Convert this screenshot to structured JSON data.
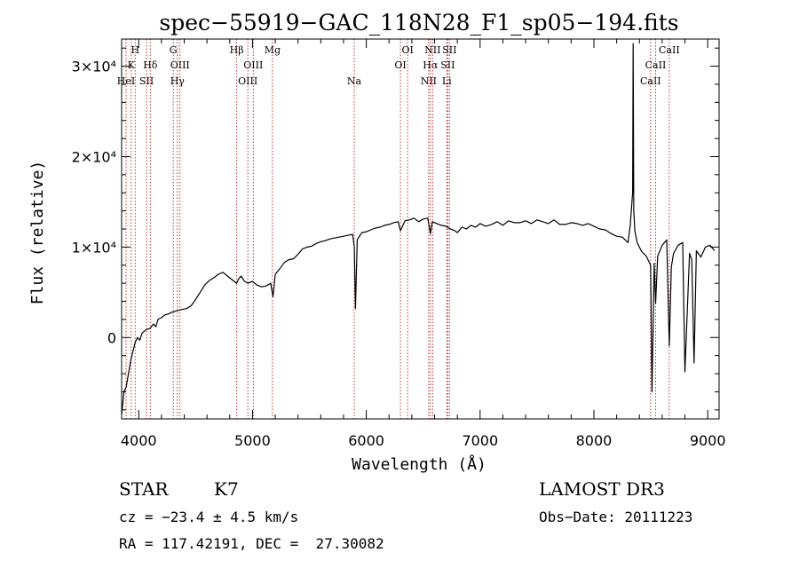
{
  "chart_data": {
    "type": "line",
    "title": "spec−55919−GAC_118N28_F1_sp05−194.fits",
    "xlabel": "Wavelength (Å)",
    "ylabel": "Flux (relative)",
    "xlim": [
      3850,
      9100
    ],
    "ylim": [
      -9000,
      33000
    ],
    "x_ticks": [
      {
        "value": 4000,
        "label": "4000"
      },
      {
        "value": 5000,
        "label": "5000"
      },
      {
        "value": 6000,
        "label": "6000"
      },
      {
        "value": 7000,
        "label": "7000"
      },
      {
        "value": 8000,
        "label": "8000"
      },
      {
        "value": 9000,
        "label": "9000"
      }
    ],
    "y_ticks": [
      {
        "value": 0,
        "label": "0"
      },
      {
        "value": 10000,
        "label": "1×10⁴"
      },
      {
        "value": 20000,
        "label": "2×10⁴"
      },
      {
        "value": 30000,
        "label": "3×10⁴"
      }
    ],
    "series": [
      {
        "name": "flux",
        "x": [
          3850,
          3870,
          3890,
          3910,
          3930,
          3950,
          3970,
          3990,
          4010,
          4030,
          4050,
          4070,
          4100,
          4130,
          4150,
          4170,
          4200,
          4230,
          4260,
          4290,
          4320,
          4350,
          4380,
          4420,
          4460,
          4500,
          4540,
          4580,
          4620,
          4660,
          4700,
          4740,
          4780,
          4820,
          4860,
          4880,
          4900,
          4930,
          4960,
          5000,
          5040,
          5080,
          5120,
          5160,
          5180,
          5200,
          5240,
          5280,
          5320,
          5360,
          5400,
          5440,
          5480,
          5520,
          5560,
          5600,
          5640,
          5680,
          5720,
          5760,
          5800,
          5840,
          5880,
          5895,
          5905,
          5920,
          5960,
          6000,
          6040,
          6080,
          6120,
          6160,
          6200,
          6240,
          6280,
          6300,
          6340,
          6380,
          6420,
          6460,
          6500,
          6540,
          6563,
          6580,
          6620,
          6660,
          6700,
          6740,
          6780,
          6800,
          6840,
          6880,
          6920,
          6960,
          7000,
          7050,
          7100,
          7150,
          7200,
          7250,
          7300,
          7350,
          7400,
          7450,
          7500,
          7550,
          7600,
          7650,
          7700,
          7750,
          7800,
          7850,
          7900,
          7950,
          8000,
          8050,
          8100,
          8150,
          8200,
          8250,
          8300,
          8320,
          8340,
          8345,
          8350,
          8360,
          8380,
          8420,
          8460,
          8498,
          8510,
          8530,
          8542,
          8560,
          8600,
          8640,
          8662,
          8680,
          8700,
          8740,
          8780,
          8800,
          8840,
          8860,
          8880,
          8900,
          8940,
          8980,
          9020,
          9060
        ],
        "y": [
          -8500,
          -6000,
          -5500,
          -4000,
          -2500,
          -1500,
          -500,
          0,
          -300,
          500,
          700,
          900,
          1000,
          1500,
          1200,
          2000,
          2200,
          2500,
          2600,
          2800,
          2900,
          3000,
          3100,
          3200,
          3500,
          4200,
          5000,
          5800,
          6300,
          6600,
          7000,
          7200,
          6800,
          6400,
          6000,
          6500,
          6800,
          6200,
          6000,
          6200,
          5800,
          5600,
          5700,
          6000,
          4500,
          7000,
          7600,
          8300,
          8600,
          8700,
          9200,
          9800,
          10000,
          10100,
          10400,
          10600,
          10700,
          10900,
          11000,
          11100,
          11200,
          11300,
          11400,
          10000,
          3200,
          10800,
          11600,
          11700,
          11900,
          12100,
          12200,
          12400,
          12500,
          12700,
          12800,
          11800,
          12900,
          13000,
          13200,
          12800,
          13100,
          13200,
          11500,
          12800,
          12600,
          12400,
          12300,
          12000,
          11800,
          11600,
          12200,
          12000,
          12400,
          12200,
          12600,
          12300,
          12500,
          12800,
          12400,
          12900,
          12700,
          12700,
          12900,
          12600,
          13000,
          12800,
          12600,
          13000,
          12500,
          12500,
          12700,
          12600,
          12400,
          12600,
          12300,
          12000,
          11900,
          11500,
          11200,
          11100,
          10500,
          12500,
          16000,
          32500,
          14000,
          11800,
          10500,
          9500,
          9000,
          8000,
          -6000,
          8200,
          3800,
          9000,
          10200,
          10800,
          -900,
          7800,
          9300,
          10200,
          10500,
          -3800,
          9300,
          8600,
          -2800,
          9600,
          8900,
          10000,
          10200,
          9600
        ]
      }
    ],
    "line_markers": [
      {
        "name": "HeI",
        "wavelength": 3889,
        "row": 2
      },
      {
        "name": "K",
        "wavelength": 3934,
        "row": 1
      },
      {
        "name": "H",
        "wavelength": 3969,
        "row": 0
      },
      {
        "name": "SII",
        "wavelength": 4069,
        "row": 2
      },
      {
        "name": "Hδ",
        "wavelength": 4102,
        "row": 1
      },
      {
        "name": "G",
        "wavelength": 4304,
        "row": 0
      },
      {
        "name": "Hγ",
        "wavelength": 4340,
        "row": 2
      },
      {
        "name": "OIII",
        "wavelength": 4363,
        "row": 1
      },
      {
        "name": "Hβ",
        "wavelength": 4861,
        "row": 0
      },
      {
        "name": "OIII",
        "wavelength": 4959,
        "row": 2
      },
      {
        "name": "OIII",
        "wavelength": 5007,
        "row": 1
      },
      {
        "name": "Mg",
        "wavelength": 5175,
        "row": 0
      },
      {
        "name": "Na",
        "wavelength": 5894,
        "row": 2
      },
      {
        "name": "OI",
        "wavelength": 6300,
        "row": 1
      },
      {
        "name": "OI",
        "wavelength": 6363,
        "row": 0
      },
      {
        "name": "NII",
        "wavelength": 6548,
        "row": 2
      },
      {
        "name": "Hα",
        "wavelength": 6563,
        "row": 1
      },
      {
        "name": "NII",
        "wavelength": 6583,
        "row": 0
      },
      {
        "name": "Li",
        "wavelength": 6707,
        "row": 2
      },
      {
        "name": "SII",
        "wavelength": 6716,
        "row": 1
      },
      {
        "name": "SII",
        "wavelength": 6731,
        "row": 0
      },
      {
        "name": "CaII",
        "wavelength": 8498,
        "row": 2
      },
      {
        "name": "CaII",
        "wavelength": 8542,
        "row": 1
      },
      {
        "name": "CaII",
        "wavelength": 8662,
        "row": 0
      }
    ],
    "colors": {
      "spectrum": "#000000",
      "markers": "#b22222"
    }
  },
  "info": {
    "class": "STAR",
    "subclass": "K7",
    "survey": "LAMOST DR3",
    "redshift": "cz = −23.4 ± 4.5 km/s",
    "obs_date": "Obs−Date: 20111223",
    "coords": "RA = 117.42191, DEC =  27.30082"
  }
}
